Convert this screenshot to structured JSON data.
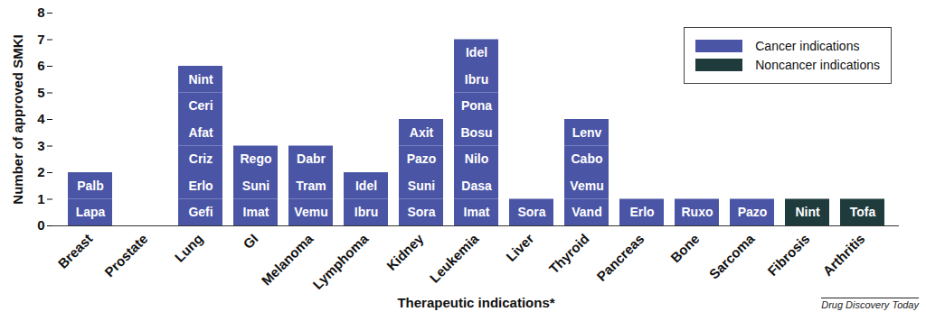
{
  "chart_data": {
    "type": "bar",
    "stacked": true,
    "data_labels": true,
    "grid": false,
    "legend": "top-right",
    "x_label": "Therapeutic indications*",
    "y_label": "Number of approved SMKI",
    "source": "Drug Discovery Today",
    "ylim": [
      0,
      8
    ],
    "yticks": [
      0,
      1,
      2,
      3,
      4,
      5,
      6,
      7,
      8
    ],
    "categories": [
      "Breast",
      "Prostate",
      "Lung",
      "GI",
      "Melanoma",
      "Lymphoma",
      "Kidney",
      "Leukemia",
      "Liver",
      "Thyroid",
      "Pancreas",
      "Bone",
      "Sarcoma",
      "Fibrosis",
      "Arthritis"
    ],
    "series": [
      {
        "name": "Cancer indications",
        "color": "#4b55a6"
      },
      {
        "name": "Noncancer indications",
        "color": "#1f3b3c"
      }
    ],
    "segments": [
      [
        {
          "label": "Lapa",
          "value": 1,
          "series": "Cancer indications"
        },
        {
          "label": "Palb",
          "value": 1,
          "series": "Cancer indications"
        }
      ],
      [],
      [
        {
          "label": "Gefi",
          "value": 1,
          "series": "Cancer indications"
        },
        {
          "label": "Erlo",
          "value": 1,
          "series": "Cancer indications"
        },
        {
          "label": "Criz",
          "value": 1,
          "series": "Cancer indications"
        },
        {
          "label": "Afat",
          "value": 1,
          "series": "Cancer indications"
        },
        {
          "label": "Ceri",
          "value": 1,
          "series": "Cancer indications"
        },
        {
          "label": "Nint",
          "value": 1,
          "series": "Cancer indications"
        }
      ],
      [
        {
          "label": "Imat",
          "value": 1,
          "series": "Cancer indications"
        },
        {
          "label": "Suni",
          "value": 1,
          "series": "Cancer indications"
        },
        {
          "label": "Rego",
          "value": 1,
          "series": "Cancer indications"
        }
      ],
      [
        {
          "label": "Vemu",
          "value": 1,
          "series": "Cancer indications"
        },
        {
          "label": "Tram",
          "value": 1,
          "series": "Cancer indications"
        },
        {
          "label": "Dabr",
          "value": 1,
          "series": "Cancer indications"
        }
      ],
      [
        {
          "label": "Ibru",
          "value": 1,
          "series": "Cancer indications"
        },
        {
          "label": "Idel",
          "value": 1,
          "series": "Cancer indications"
        }
      ],
      [
        {
          "label": "Sora",
          "value": 1,
          "series": "Cancer indications"
        },
        {
          "label": "Suni",
          "value": 1,
          "series": "Cancer indications"
        },
        {
          "label": "Pazo",
          "value": 1,
          "series": "Cancer indications"
        },
        {
          "label": "Axit",
          "value": 1,
          "series": "Cancer indications"
        }
      ],
      [
        {
          "label": "Imat",
          "value": 1,
          "series": "Cancer indications"
        },
        {
          "label": "Dasa",
          "value": 1,
          "series": "Cancer indications"
        },
        {
          "label": "Nilo",
          "value": 1,
          "series": "Cancer indications"
        },
        {
          "label": "Bosu",
          "value": 1,
          "series": "Cancer indications"
        },
        {
          "label": "Pona",
          "value": 1,
          "series": "Cancer indications"
        },
        {
          "label": "Ibru",
          "value": 1,
          "series": "Cancer indications"
        },
        {
          "label": "Idel",
          "value": 1,
          "series": "Cancer indications"
        }
      ],
      [
        {
          "label": "Sora",
          "value": 1,
          "series": "Cancer indications"
        }
      ],
      [
        {
          "label": "Vand",
          "value": 1,
          "series": "Cancer indications"
        },
        {
          "label": "Vemu",
          "value": 1,
          "series": "Cancer indications"
        },
        {
          "label": "Cabo",
          "value": 1,
          "series": "Cancer indications"
        },
        {
          "label": "Lenv",
          "value": 1,
          "series": "Cancer indications"
        }
      ],
      [
        {
          "label": "Erlo",
          "value": 1,
          "series": "Cancer indications"
        }
      ],
      [
        {
          "label": "Ruxo",
          "value": 1,
          "series": "Cancer indications"
        }
      ],
      [
        {
          "label": "Pazo",
          "value": 1,
          "series": "Cancer indications"
        }
      ],
      [
        {
          "label": "Nint",
          "value": 1,
          "series": "Noncancer indications"
        }
      ],
      [
        {
          "label": "Tofa",
          "value": 1,
          "series": "Noncancer indications"
        }
      ]
    ]
  }
}
